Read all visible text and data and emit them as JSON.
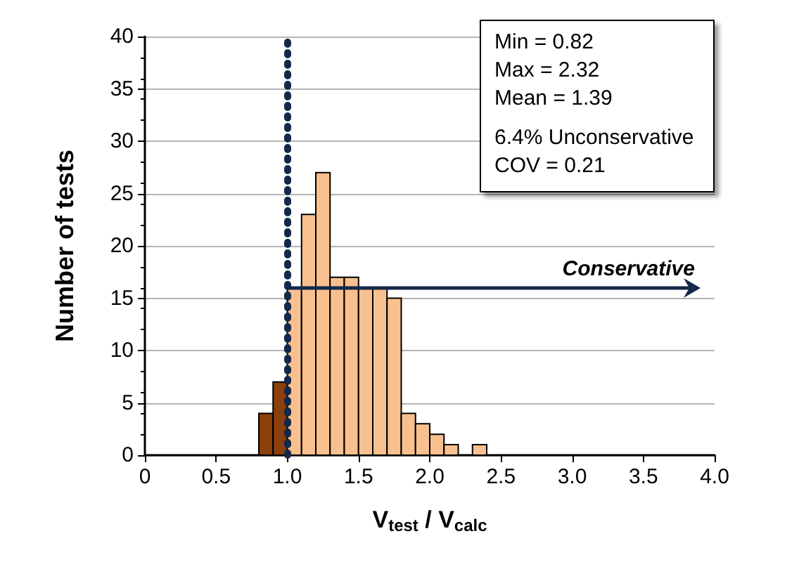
{
  "chart_data": {
    "type": "histogram",
    "xlabel": "V$_{test}$ / V$_{calc}$",
    "ylabel": "Number of tests",
    "bins": [
      0.8,
      0.9,
      1.0,
      1.1,
      1.2,
      1.3,
      1.4,
      1.5,
      1.6,
      1.7,
      1.8,
      1.9,
      2.0,
      2.1,
      2.2,
      2.3,
      2.4
    ],
    "values": [
      4,
      7,
      16,
      23,
      27,
      17,
      17,
      16,
      16,
      15,
      4,
      3,
      2,
      1,
      0,
      1
    ],
    "colors": [
      "#8b3f0b",
      "#8b3f0b",
      "#f9c08f",
      "#f9c08f",
      "#f9c08f",
      "#f9c08f",
      "#f9c08f",
      "#f9c08f",
      "#f9c08f",
      "#f9c08f",
      "#f9c08f",
      "#f9c08f",
      "#f9c08f",
      "#f9c08f",
      "#f9c08f",
      "#f9c08f"
    ],
    "xlim": [
      0,
      4
    ],
    "xticks": [
      0,
      0.5,
      {
        "value": 1,
        "label": "1.0"
      },
      1.5,
      {
        "value": 2,
        "label": "2.0"
      },
      2.5,
      {
        "value": 3,
        "label": "3.0"
      },
      3.5,
      {
        "value": 4,
        "label": "4.0"
      }
    ],
    "ylim": [
      0,
      40
    ],
    "yticks": [
      0,
      5,
      10,
      15,
      20,
      25,
      30,
      35,
      40
    ],
    "grid": "y",
    "ref_lines": [
      {
        "axis": "x",
        "value": 1,
        "color": "#14284b",
        "line_style": "dotted"
      }
    ],
    "annotations": [
      "Min = 0.82",
      "Max = 2.32",
      "Mean = 1.39",
      "6.4% Unconservative",
      "COV = 0.21",
      "Conservative"
    ]
  }
}
